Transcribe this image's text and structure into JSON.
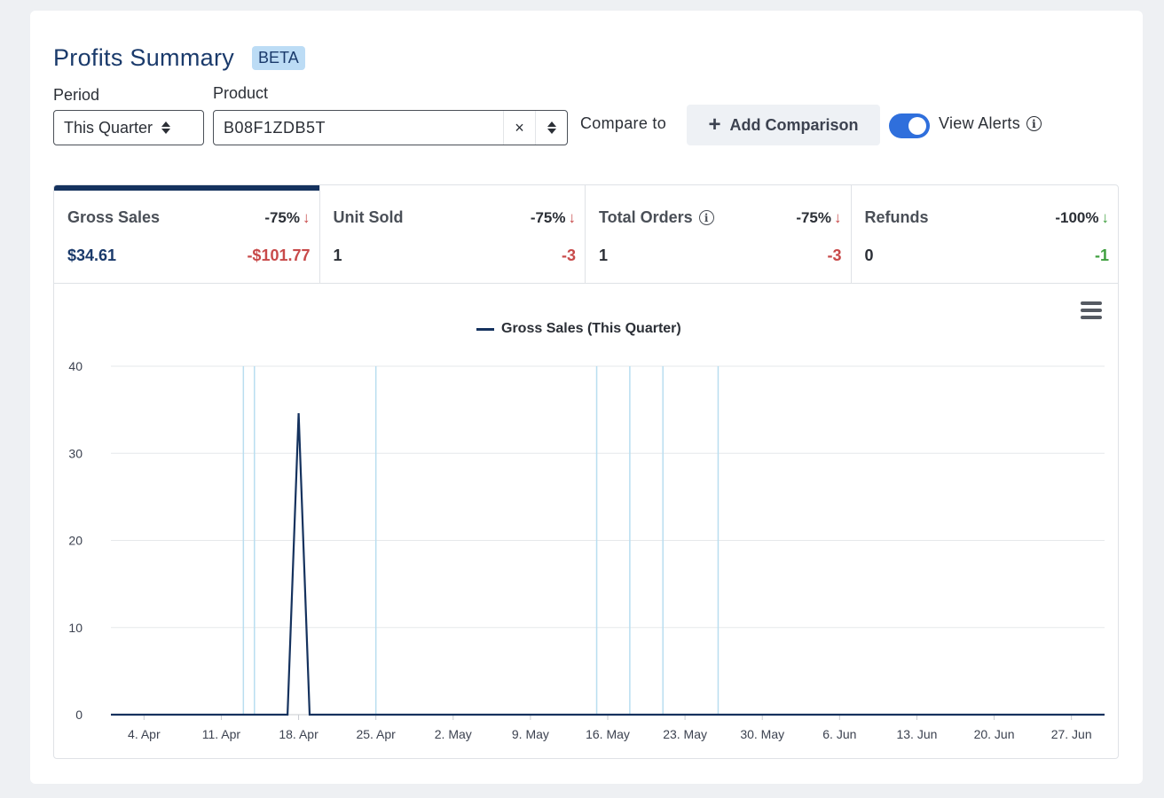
{
  "header": {
    "title": "Profits Summary",
    "badge": "BETA"
  },
  "filters": {
    "period_label": "Period",
    "period_value": "This Quarter",
    "product_label": "Product",
    "product_value": "B08F1ZDB5T",
    "clear_glyph": "×",
    "compare_label": "Compare to",
    "add_comparison_label": "Add Comparison",
    "view_alerts_label": "View Alerts",
    "view_alerts_on": true
  },
  "metrics": [
    {
      "name": "Gross Sales",
      "pct": "-75%",
      "trend": "down",
      "trend_color": "red",
      "value": "$34.61",
      "delta": "-$101.77",
      "delta_color": "red",
      "active": true,
      "info": false
    },
    {
      "name": "Unit Sold",
      "pct": "-75%",
      "trend": "down",
      "trend_color": "red",
      "value": "1",
      "delta": "-3",
      "delta_color": "red",
      "active": false,
      "info": false
    },
    {
      "name": "Total Orders",
      "pct": "-75%",
      "trend": "down",
      "trend_color": "red",
      "value": "1",
      "delta": "-3",
      "delta_color": "red",
      "active": false,
      "info": true
    },
    {
      "name": "Refunds",
      "pct": "-100%",
      "trend": "down",
      "trend_color": "green",
      "value": "0",
      "delta": "-1",
      "delta_color": "green",
      "active": false,
      "info": false
    }
  ],
  "chart_data": {
    "type": "line",
    "title": "",
    "xlabel": "",
    "ylabel": "",
    "ylim": [
      0,
      40
    ],
    "yticks": [
      "0",
      "10",
      "20",
      "30",
      "40"
    ],
    "xlim": [
      "2021-04-01",
      "2021-06-30"
    ],
    "xticks": [
      {
        "date": "2021-04-04",
        "label": "4. Apr"
      },
      {
        "date": "2021-04-11",
        "label": "11. Apr"
      },
      {
        "date": "2021-04-18",
        "label": "18. Apr"
      },
      {
        "date": "2021-04-25",
        "label": "25. Apr"
      },
      {
        "date": "2021-05-02",
        "label": "2. May"
      },
      {
        "date": "2021-05-09",
        "label": "9. May"
      },
      {
        "date": "2021-05-16",
        "label": "16. May"
      },
      {
        "date": "2021-05-23",
        "label": "23. May"
      },
      {
        "date": "2021-05-30",
        "label": "30. May"
      },
      {
        "date": "2021-06-06",
        "label": "6. Jun"
      },
      {
        "date": "2021-06-13",
        "label": "13. Jun"
      },
      {
        "date": "2021-06-20",
        "label": "20. Jun"
      },
      {
        "date": "2021-06-27",
        "label": "27. Jun"
      }
    ],
    "series": [
      {
        "name": "Gross Sales (This Quarter)",
        "color": "#15325e",
        "points": [
          {
            "x": "2021-04-01",
            "y": 0
          },
          {
            "x": "2021-04-17",
            "y": 0
          },
          {
            "x": "2021-04-18",
            "y": 34.61
          },
          {
            "x": "2021-04-19",
            "y": 0
          },
          {
            "x": "2021-06-30",
            "y": 0
          }
        ]
      }
    ],
    "alert_dates": [
      "2021-04-13",
      "2021-04-14",
      "2021-04-25",
      "2021-05-15",
      "2021-05-18",
      "2021-05-21",
      "2021-05-26"
    ],
    "alert_color": "#b9def0",
    "grid": true,
    "legend": "top-center"
  }
}
